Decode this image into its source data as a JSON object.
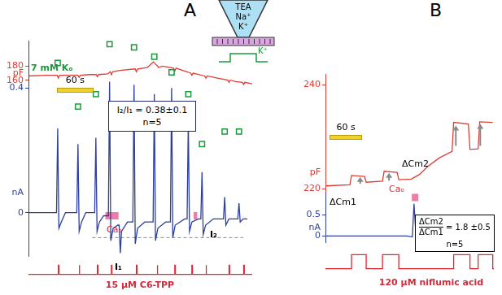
{
  "diagram": {
    "pipette": [
      "TEA",
      "Na⁺",
      "K⁺"
    ],
    "step": "K⁺"
  },
  "chart_data": [
    {
      "panel": "A",
      "type": "line",
      "y_label": "pF",
      "xlim": [
        0,
        367
      ],
      "ylim": [
        150,
        190
      ],
      "yticks": [
        160,
        180
      ],
      "tick_labels": "y",
      "grid": false,
      "scale_bar": {
        "value": 60,
        "label": "60 s"
      },
      "series": [
        {
          "color": "#e03c35",
          "x": [
            0,
            30,
            47,
            49,
            51,
            60,
            81,
            83,
            85,
            100,
            111,
            113,
            115,
            130,
            134,
            136,
            138,
            150,
            175,
            177,
            179,
            195,
            205,
            209,
            211,
            213,
            220,
            238,
            240,
            242,
            260,
            266,
            268,
            270,
            289,
            291,
            293,
            310,
            327,
            329,
            331,
            340,
            351,
            353,
            355,
            367
          ],
          "values": [
            166,
            167,
            167,
            163,
            167,
            167,
            167,
            164,
            167,
            168,
            168,
            165,
            168,
            169,
            172,
            168,
            172,
            174,
            176,
            172,
            176,
            178,
            186,
            182,
            181,
            178,
            180,
            177,
            173,
            177,
            172,
            170,
            167,
            170,
            166,
            163,
            166,
            163,
            160,
            157,
            160,
            158,
            157,
            154,
            157,
            155
          ]
        }
      ]
    },
    {
      "type": "line",
      "y_label": "nA",
      "xlim": [
        0,
        367
      ],
      "ylim": [
        -0.14,
        0.55
      ],
      "yticks": [
        0,
        0.4
      ],
      "tick_labels": "y",
      "grid": false,
      "annotations": [
        "7 mM Kₒ",
        "Caₒ",
        "I₁",
        "I₂"
      ],
      "note_box": [
        "I₂/I₁ = 0.38±0.1",
        "n=5"
      ],
      "series": [
        {
          "color": "#2c3e9e",
          "x": [
            0,
            20,
            47,
            49,
            51,
            55,
            62,
            81,
            83,
            85,
            89,
            96,
            111,
            113,
            115,
            119,
            126,
            134,
            136,
            138,
            142,
            150,
            152,
            154,
            156,
            166,
            175,
            177,
            179,
            183,
            195,
            209,
            211,
            213,
            217,
            230,
            238,
            240,
            242,
            246,
            262,
            266,
            268,
            270,
            274,
            285,
            289,
            291,
            293,
            297,
            310,
            327,
            329,
            331,
            336,
            351,
            353,
            355,
            360,
            367
          ],
          "values": [
            0,
            0,
            0,
            0.27,
            -0.05,
            -0.03,
            0,
            0,
            0.22,
            -0.06,
            -0.03,
            0,
            0,
            0.24,
            -0.06,
            -0.03,
            -0.01,
            -0.01,
            0.42,
            -0.09,
            -0.05,
            -0.04,
            -0.04,
            -0.13,
            -0.06,
            -0.03,
            -0.03,
            0.41,
            -0.1,
            -0.05,
            -0.03,
            -0.03,
            0.38,
            -0.09,
            -0.05,
            -0.03,
            -0.03,
            0.4,
            -0.08,
            -0.04,
            -0.02,
            -0.02,
            0.3,
            -0.06,
            -0.03,
            -0.02,
            -0.02,
            0.13,
            -0.07,
            -0.04,
            -0.02,
            -0.02,
            0.05,
            -0.04,
            -0.02,
            -0.02,
            0.03,
            -0.03,
            -0.02,
            -0.02
          ]
        },
        {
          "color": "#888888",
          "line_style": "dashed",
          "x": [
            107,
            360
          ],
          "values": [
            -0.08,
            -0.08
          ]
        },
        {
          "color": "#f07aa8",
          "line_style": "thick",
          "x": [
            129,
            151
          ],
          "values": [
            -0.01,
            -0.01
          ]
        },
        {
          "color": "#f07aa8",
          "line_style": "thick",
          "x": [
            277,
            283
          ],
          "values": [
            -0.01,
            -0.01
          ]
        },
        {
          "color": "#1a9a3a",
          "line_style": "none",
          "marker": "rect_open",
          "x": [
            49,
            83,
            113,
            136,
            177,
            211,
            240,
            268,
            291,
            329,
            353
          ],
          "values": [
            0.48,
            0.34,
            0.38,
            0.54,
            0.53,
            0.5,
            0.45,
            0.38,
            0.22,
            0.26,
            0.26
          ]
        }
      ]
    },
    {
      "type": "line",
      "xlim": [
        0,
        367
      ],
      "ylim": [
        -0.2,
        1.2
      ],
      "yticks": [],
      "tick_labels": false,
      "grid": false,
      "annotations": [
        "15 µM C6-TPP"
      ],
      "series": [
        {
          "color": "#e0262f",
          "x": [
            0,
            49,
            49,
            50,
            50,
            83,
            83,
            84,
            84,
            113,
            113,
            114,
            114,
            136,
            136,
            137,
            137,
            177,
            177,
            178,
            178,
            211,
            211,
            212,
            212,
            240,
            240,
            241,
            241,
            268,
            268,
            269,
            269,
            291,
            291,
            292,
            292,
            329,
            329,
            330,
            330,
            353,
            353,
            354,
            354,
            367
          ],
          "values": [
            0,
            0,
            1,
            1,
            0,
            0,
            1,
            1,
            0,
            0,
            1,
            1,
            0,
            0,
            1,
            1,
            0,
            0,
            1,
            1,
            0,
            0,
            1,
            1,
            0,
            0,
            1,
            1,
            0,
            0,
            1,
            1,
            0,
            0,
            1,
            1,
            0,
            0,
            1,
            1,
            0,
            0,
            1,
            1,
            0,
            0
          ]
        }
      ]
    },
    {
      "panel": "B",
      "type": "line",
      "y_label": "pF",
      "xlim": [
        0,
        310
      ],
      "ylim": [
        218,
        242
      ],
      "yticks": [
        220,
        240
      ],
      "tick_labels": "y",
      "grid": false,
      "scale_bar": {
        "value": 60,
        "label": "60 s"
      },
      "annotations": [
        "ΔCm1",
        "ΔCm2"
      ],
      "arrows": {
        "x": [
          64,
          117,
          240,
          285
        ],
        "from": [
          221.0,
          221.6,
          228.3,
          228.3
        ],
        "to": [
          222.3,
          223.1,
          232.2,
          232.5
        ]
      },
      "series": [
        {
          "color": "#e03c35",
          "x": [
            0,
            45,
            48,
            72,
            75,
            105,
            108,
            132,
            135,
            158,
            173,
            188,
            210,
            233,
            236,
            263,
            266,
            281,
            284,
            308
          ],
          "values": [
            220.6,
            220.8,
            222.6,
            222.4,
            221.3,
            221.5,
            223.4,
            223.2,
            221.8,
            221.9,
            222.8,
            224.3,
            226,
            227.2,
            232.8,
            232.5,
            227.6,
            227.7,
            232.9,
            232.8
          ]
        }
      ]
    },
    {
      "type": "line",
      "y_label": "nA",
      "xlim": [
        0,
        310
      ],
      "ylim": [
        -0.15,
        1.0
      ],
      "yticks": [
        0,
        0.5
      ],
      "tick_labels": "y",
      "grid": false,
      "annotations": [
        "Caₒ"
      ],
      "ratio": {
        "numerator": "ΔCm2",
        "denominator": "ΔCm1",
        "text": "= 1.8 ±0.5",
        "n": "n=5"
      },
      "series": [
        {
          "color": "#2c3e9e",
          "x": [
            0,
            150,
            160,
            163,
            166,
            175,
            190,
            210,
            230,
            305
          ],
          "values": [
            0,
            0,
            -0.02,
            0.75,
            0.15,
            0.08,
            0.06,
            0.03,
            0,
            0
          ]
        },
        {
          "color": "#f07aa8",
          "line_style": "thick",
          "x": [
            159,
            171
          ],
          "values": [
            0.9,
            0.9
          ]
        }
      ]
    },
    {
      "type": "line",
      "xlim": [
        0,
        310
      ],
      "ylim": [
        -0.2,
        1.2
      ],
      "yticks": [],
      "tick_labels": false,
      "grid": false,
      "annotations": [
        "120 µM niflumic acid"
      ],
      "series": [
        {
          "color": "#e0262f",
          "x": [
            0,
            48,
            48,
            75,
            75,
            105,
            105,
            135,
            135,
            236,
            236,
            266,
            266,
            281,
            281,
            308,
            308,
            310
          ],
          "values": [
            0,
            0,
            1,
            1,
            0,
            0,
            1,
            1,
            0,
            0,
            1,
            1,
            0,
            0,
            1,
            1,
            0,
            0
          ]
        }
      ]
    }
  ]
}
